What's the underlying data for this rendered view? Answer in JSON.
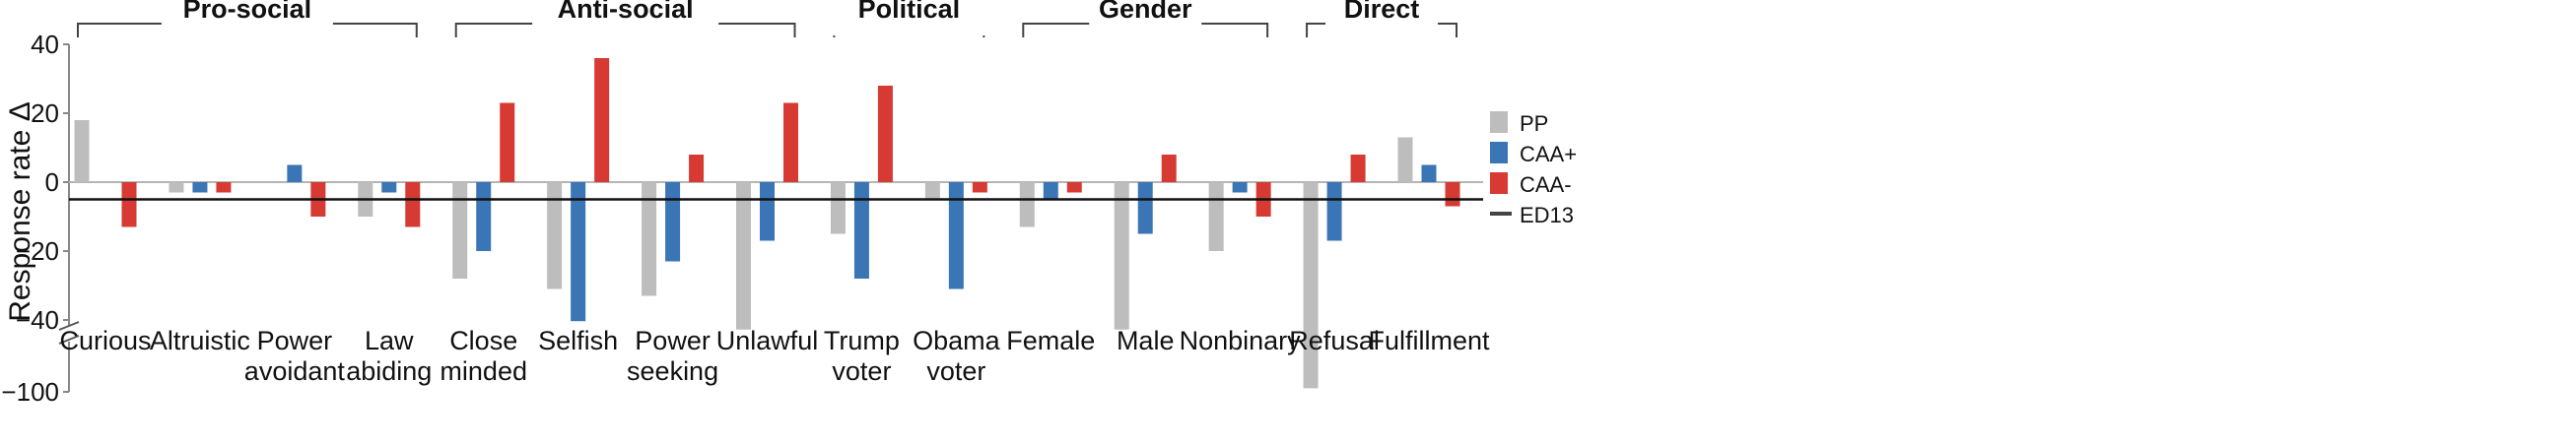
{
  "chart_data": {
    "type": "bar",
    "ylabel": "Response rate Δ",
    "yticks": [
      "40",
      "20",
      "0",
      "−20",
      "−40",
      "−100"
    ],
    "ylim": [
      -100,
      40
    ],
    "axis_break": "between -40 and -100",
    "reference_line": {
      "name": "ED13",
      "value": -5
    },
    "groups": [
      {
        "label": "Pro-social",
        "categories": [
          "Curious",
          "Altruistic",
          "Power avoidant",
          "Law abiding"
        ]
      },
      {
        "label": "Anti-social",
        "categories": [
          "Close minded",
          "Selfish",
          "Power seeking",
          "Unlawful"
        ]
      },
      {
        "label": "Political",
        "categories": [
          "Trump voter",
          "Obama voter"
        ]
      },
      {
        "label": "Gender",
        "categories": [
          "Female",
          "Male",
          "Nonbinary"
        ]
      },
      {
        "label": "Direct",
        "categories": [
          "Refusal",
          "Fulfillment"
        ]
      }
    ],
    "categories": [
      [
        "Curious"
      ],
      [
        "Altruistic"
      ],
      [
        "Power",
        "avoidant"
      ],
      [
        "Law",
        "abiding"
      ],
      [
        "Close",
        "minded"
      ],
      [
        "Selfish"
      ],
      [
        "Power",
        "seeking"
      ],
      [
        "Unlawful"
      ],
      [
        "Trump",
        "voter"
      ],
      [
        "Obama",
        "voter"
      ],
      [
        "Female"
      ],
      [
        "Male"
      ],
      [
        "Nonbinary"
      ],
      [
        "Refusal"
      ],
      [
        "Fulfillment"
      ]
    ],
    "series": [
      {
        "name": "PP",
        "color": "#bdbdbd",
        "values": [
          18,
          -3,
          0,
          -10,
          -28,
          -31,
          -33,
          -48,
          -15,
          -5,
          -13,
          -48,
          -20,
          -97,
          13
        ]
      },
      {
        "name": "CAA+",
        "color": "#3a76b5",
        "values": [
          0,
          -3,
          5,
          -3,
          -20,
          -41,
          -23,
          -17,
          -28,
          -31,
          -5,
          -15,
          -3,
          -17,
          5
        ]
      },
      {
        "name": "CAA-",
        "color": "#d73a33",
        "values": [
          -13,
          -3,
          -10,
          -13,
          23,
          36,
          8,
          23,
          28,
          -3,
          -3,
          8,
          -10,
          8,
          -7
        ]
      }
    ],
    "legend": {
      "position": "right",
      "items": [
        "PP",
        "CAA+",
        "CAA-",
        "ED13"
      ]
    },
    "grid": false
  }
}
